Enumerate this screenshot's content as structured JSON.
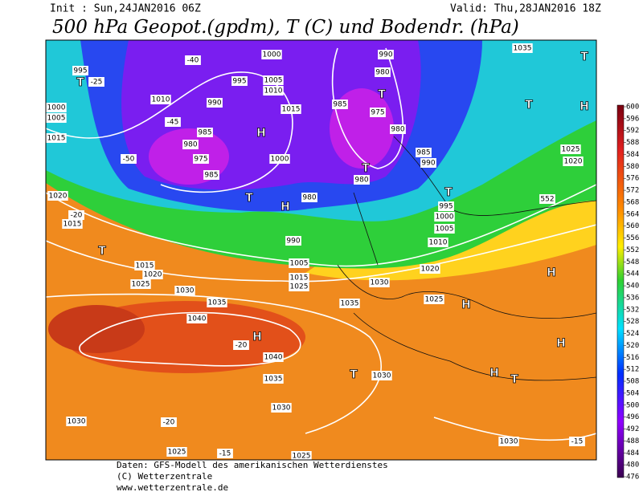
{
  "header": {
    "init": "Init : Sun,24JAN2016 06Z",
    "valid": "Valid: Thu,28JAN2016 18Z",
    "title": "500 hPa Geopot.(gpdm), T (C) und Bodendr. (hPa)"
  },
  "colorbar": {
    "ticks": [
      600,
      596,
      592,
      588,
      584,
      580,
      576,
      572,
      568,
      564,
      560,
      556,
      552,
      548,
      544,
      540,
      536,
      532,
      528,
      524,
      520,
      516,
      512,
      508,
      504,
      500,
      496,
      492,
      488,
      484,
      480,
      476
    ]
  },
  "map_labels": [
    "995",
    "T",
    "-25",
    "1010",
    "1000",
    "1005",
    "1015",
    "1020",
    "1015",
    "-20",
    "H",
    "H",
    "T",
    "975",
    "980",
    "985",
    "990",
    "995",
    "1000",
    "1005",
    "1010",
    "1015",
    "1000",
    "985",
    "-40",
    "-45",
    "-50",
    "980",
    "990",
    "1005",
    "1015",
    "1025",
    "990",
    "980",
    "985",
    "975",
    "980",
    "985",
    "990",
    "980",
    "T",
    "T",
    "T",
    "995",
    "1000",
    "1005",
    "1010",
    "1020",
    "1025",
    "1030",
    "1035",
    "1035",
    "1025",
    "1020",
    "T",
    "T",
    "H",
    "552",
    "H",
    "H",
    "H",
    "H",
    "T",
    "T",
    "1030",
    "1030",
    "-15",
    "1040",
    "H",
    "1040",
    "1035",
    "1030",
    "1035",
    "1030",
    "1025",
    "1020",
    "1015",
    "T",
    "1030",
    "-20",
    "1025",
    "-15",
    "-20",
    "1025"
  ],
  "footer": [
    "Daten: GFS-Modell des amerikanischen Wetterdienstes",
    "(C) Wetterzentrale",
    "www.wetterzentrale.de"
  ]
}
